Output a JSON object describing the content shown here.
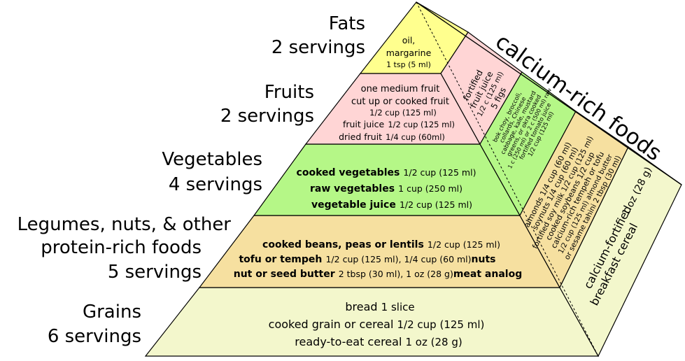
{
  "colors": {
    "fats": "#ffff8e",
    "fruits": "#ffd5d5",
    "vegetables": "#b5f787",
    "legumes": "#f6e0a0",
    "grains": "#f3f7cc",
    "outline": "#000000"
  },
  "calcium_title": "calcium-rich foods",
  "tiers": {
    "fats": {
      "name": "Fats",
      "servings": "2 servings",
      "lines": [
        "oil,",
        "margarine",
        "1 tsp (5 ml)"
      ]
    },
    "fruits": {
      "name": "Fruits",
      "servings": "2 servings",
      "lines": [
        {
          "a": "one medium fruit",
          "b": ""
        },
        {
          "a": "cut up or cooked fruit",
          "b": ""
        },
        {
          "a": "",
          "b": "1/2 cup (125 ml)"
        },
        {
          "a": "fruit juice",
          "b": "1/2 cup (125 ml)"
        },
        {
          "a": "dried fruit",
          "b": "1/4 cup (60ml)"
        }
      ]
    },
    "vegetables": {
      "name": "Vegetables",
      "servings": "4 servings",
      "lines": [
        {
          "a": "cooked vegetables",
          "b": "1/2 cup (125 ml)"
        },
        {
          "a": "raw vegetables",
          "b": "1 cup (250 ml)"
        },
        {
          "a": "vegetable juice",
          "b": "1/2 cup (125 ml)"
        }
      ]
    },
    "legumes": {
      "name_lines": [
        "Legumes, nuts, & other",
        "protein-rich foods"
      ],
      "servings": "5 servings",
      "lines": [
        {
          "a": "cooked beans, peas or lentils",
          "b": "1/2 cup (125 ml)",
          "c": ""
        },
        {
          "a": "tofu or tempeh",
          "b": "1/2 cup (125 ml),  1/4 cup (60 ml)",
          "c": "nuts"
        },
        {
          "a": "nut or seed butter",
          "b": "2 tbsp (30 ml),  1 oz (28 g)",
          "c": "meat analog"
        }
      ]
    },
    "grains": {
      "name": "Grains",
      "servings": "6 servings",
      "lines": [
        {
          "a": "bread",
          "b": "1 slice"
        },
        {
          "a": "cooked grain or cereal",
          "b": "1/2 cup (125 ml)"
        },
        {
          "a": "ready-to-eat cereal",
          "b": "1 oz (28 g)"
        }
      ]
    }
  },
  "side": {
    "fruits": [
      "fortified",
      "fruit juice",
      "1/2 c (125 ml)",
      "5 figs"
    ],
    "vegetables": [
      "bok choy, broccoli,",
      "collards, Chinese",
      "cabbage, kale, mustard",
      "greens, or okra cooked",
      "1 c (250 ml) or 2 c (500 ml) raw",
      "fortified tomato juice",
      "1/2 cup (125 ml)"
    ],
    "legumes": [
      "almonds 1/4 cup (60 ml)",
      "soynuts 1/4 cup (60 ml)",
      "fortified soy milk 1/2 cup (125 ml)",
      "cooked soybeans 1/2 cup",
      "calcium-rich tempeh or tofu",
      "1/2 cup (125 ml) almond butter",
      "or sesame tahini 2 tbsp (30 ml)"
    ],
    "grains": [
      "calcium-fortified",
      "breakfast cereal",
      "1 oz (28 g)"
    ]
  }
}
